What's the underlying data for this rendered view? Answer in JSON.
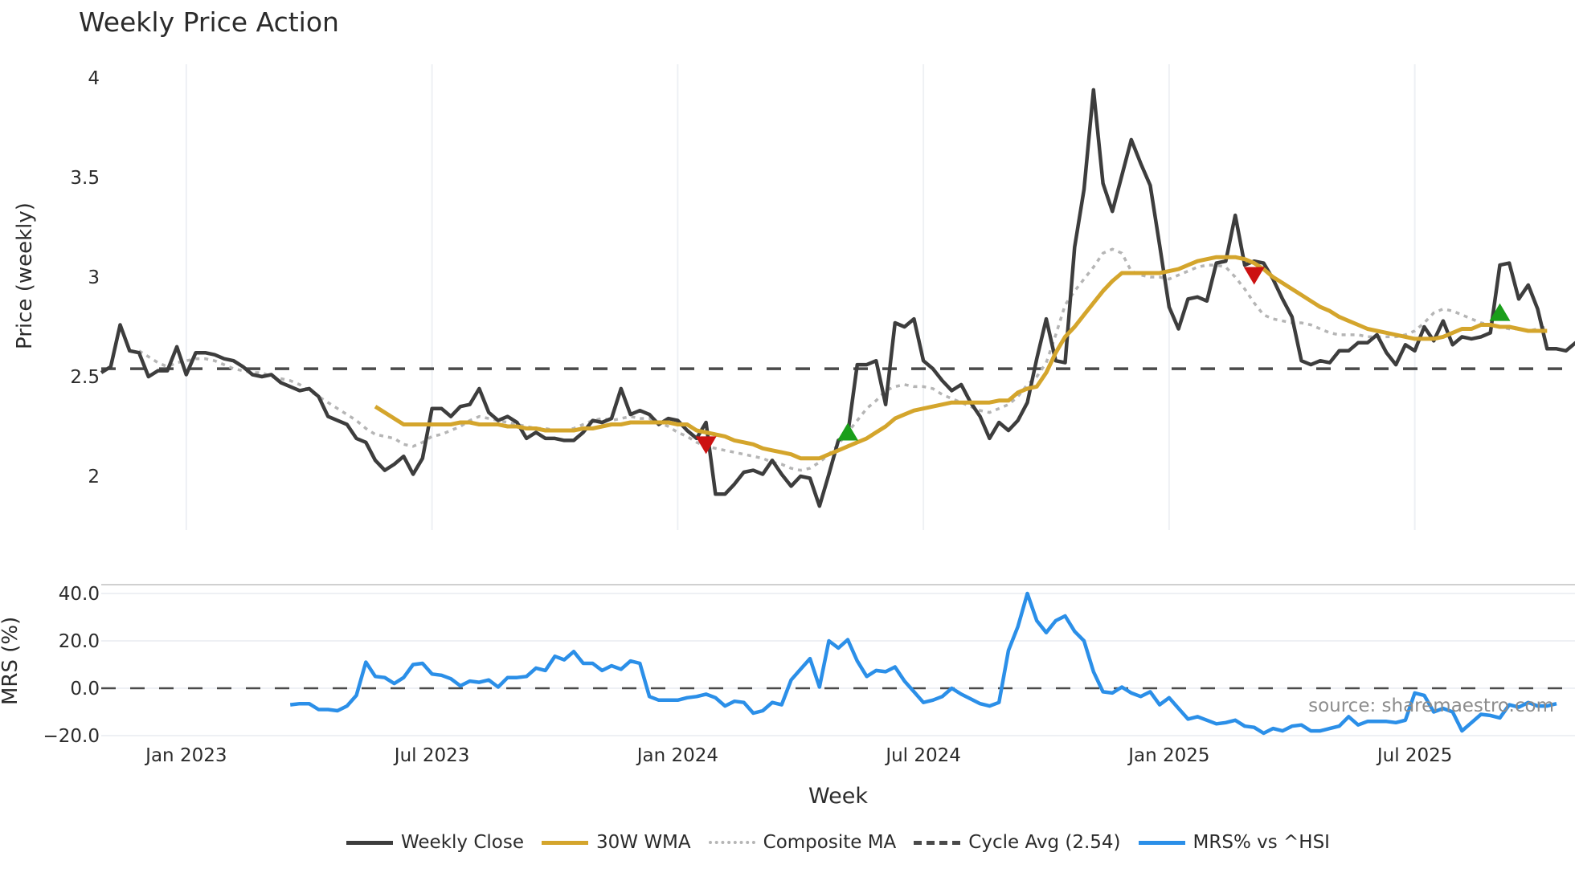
{
  "header": {
    "title": "Weekly Price Action"
  },
  "axes": {
    "xlabel": "Week",
    "ylabel_main": "Price (weekly)",
    "ylabel_mrs": "MRS (%)",
    "main_ticks": [
      {
        "label": "4",
        "value": 4
      },
      {
        "label": "3.5",
        "value": 3.5
      },
      {
        "label": "3",
        "value": 3
      },
      {
        "label": "2.5",
        "value": 2.5
      },
      {
        "label": "2",
        "value": 2
      }
    ],
    "mrs_ticks": [
      {
        "label": "40.0",
        "value": 40
      },
      {
        "label": "20.0",
        "value": 20
      },
      {
        "label": "0.0",
        "value": 0
      },
      {
        "label": "−20.0",
        "value": -20
      }
    ],
    "date_ticks": [
      {
        "label": "Jan 2023",
        "week": 9
      },
      {
        "label": "Jul 2023",
        "week": 35
      },
      {
        "label": "Jan 2024",
        "week": 61
      },
      {
        "label": "Jul 2024",
        "week": 87
      },
      {
        "label": "Jan 2025",
        "week": 113
      },
      {
        "label": "Jul 2025",
        "week": 139
      }
    ]
  },
  "legend": {
    "items": [
      {
        "label": "Weekly Close",
        "color": "#3d3d3d",
        "style": "solid"
      },
      {
        "label": "30W WMA",
        "color": "#d4a52c",
        "style": "solid"
      },
      {
        "label": "Composite MA",
        "color": "#b5b5b5",
        "style": "dotted"
      },
      {
        "label": "Cycle Avg (2.54)",
        "color": "#4a4a4a",
        "style": "dashed"
      },
      {
        "label": "MRS% vs ^HSI",
        "color": "#2b8fe8",
        "style": "solid"
      }
    ]
  },
  "annotation": {
    "source": "source: sharemaestro.com"
  },
  "colors": {
    "close": "#3d3d3d",
    "wma": "#d4a52c",
    "composite": "#b5b5b5",
    "cycle": "#4a4a4a",
    "mrs": "#2b8fe8",
    "buy": "#1a9e1a",
    "sell": "#cc1111",
    "grid": "#eef0f4"
  },
  "chart_data": [
    {
      "type": "line",
      "title": "Weekly Price Action",
      "xlabel": "Week",
      "ylabel": "Price (weekly)",
      "ylim": [
        1.72,
        4.08
      ],
      "x_ticks": [
        "Jan 2023",
        "Jul 2023",
        "Jan 2024",
        "Jul 2024",
        "Jan 2025",
        "Jul 2025"
      ],
      "grid": true,
      "legend_position": "bottom",
      "cycle_avg": 2.54,
      "series": [
        {
          "name": "Weekly Close",
          "start_week": 0,
          "values": [
            2.52,
            2.55,
            2.76,
            2.63,
            2.62,
            2.5,
            2.53,
            2.53,
            2.65,
            2.51,
            2.62,
            2.62,
            2.61,
            2.59,
            2.58,
            2.55,
            2.51,
            2.5,
            2.51,
            2.47,
            2.45,
            2.43,
            2.44,
            2.4,
            2.3,
            2.28,
            2.26,
            2.19,
            2.17,
            2.08,
            2.03,
            2.06,
            2.1,
            2.01,
            2.09,
            2.34,
            2.34,
            2.3,
            2.35,
            2.36,
            2.44,
            2.32,
            2.28,
            2.3,
            2.27,
            2.19,
            2.22,
            2.19,
            2.19,
            2.18,
            2.18,
            2.22,
            2.28,
            2.27,
            2.29,
            2.44,
            2.31,
            2.33,
            2.31,
            2.26,
            2.29,
            2.28,
            2.23,
            2.19,
            2.27,
            1.91,
            1.91,
            1.96,
            2.02,
            2.03,
            2.01,
            2.08,
            2.01,
            1.95,
            2.0,
            1.99,
            1.85,
            2.01,
            2.18,
            2.21,
            2.56,
            2.56,
            2.58,
            2.36,
            2.77,
            2.75,
            2.79,
            2.58,
            2.54,
            2.48,
            2.43,
            2.46,
            2.37,
            2.3,
            2.19,
            2.27,
            2.23,
            2.28,
            2.37,
            2.59,
            2.79,
            2.58,
            2.57,
            3.15,
            3.44,
            3.94,
            3.47,
            3.33,
            3.51,
            3.69,
            3.57,
            3.46,
            3.16,
            2.85,
            2.74,
            2.89,
            2.9,
            2.88,
            3.07,
            3.08,
            3.31,
            3.06,
            3.08,
            3.07,
            2.99,
            2.89,
            2.8,
            2.58,
            2.56,
            2.58,
            2.57,
            2.63,
            2.63,
            2.67,
            2.67,
            2.71,
            2.62,
            2.56,
            2.66,
            2.63,
            2.75,
            2.68,
            2.78,
            2.66,
            2.7,
            2.69,
            2.7,
            2.72,
            3.06,
            3.07,
            2.89,
            2.96,
            2.84,
            2.64,
            2.64,
            2.63,
            2.67,
            2.63,
            2.76,
            2.78
          ]
        },
        {
          "name": "30W WMA",
          "start_week": 29,
          "values": [
            2.35,
            2.32,
            2.29,
            2.26,
            2.26,
            2.26,
            2.26,
            2.26,
            2.26,
            2.27,
            2.27,
            2.26,
            2.26,
            2.26,
            2.25,
            2.25,
            2.24,
            2.24,
            2.23,
            2.23,
            2.23,
            2.23,
            2.24,
            2.24,
            2.25,
            2.26,
            2.26,
            2.27,
            2.27,
            2.27,
            2.27,
            2.27,
            2.26,
            2.26,
            2.23,
            2.22,
            2.21,
            2.2,
            2.18,
            2.17,
            2.16,
            2.14,
            2.13,
            2.12,
            2.11,
            2.09,
            2.09,
            2.09,
            2.11,
            2.13,
            2.15,
            2.17,
            2.19,
            2.22,
            2.25,
            2.29,
            2.31,
            2.33,
            2.34,
            2.35,
            2.36,
            2.37,
            2.37,
            2.37,
            2.37,
            2.37,
            2.38,
            2.38,
            2.42,
            2.44,
            2.45,
            2.52,
            2.62,
            2.7,
            2.75,
            2.81,
            2.87,
            2.93,
            2.98,
            3.02,
            3.02,
            3.02,
            3.02,
            3.02,
            3.03,
            3.04,
            3.06,
            3.08,
            3.09,
            3.1,
            3.1,
            3.1,
            3.09,
            3.07,
            3.04,
            3.0,
            2.97,
            2.94,
            2.91,
            2.88,
            2.85,
            2.83,
            2.8,
            2.78,
            2.76,
            2.74,
            2.73,
            2.72,
            2.71,
            2.7,
            2.69,
            2.69,
            2.69,
            2.7,
            2.72,
            2.74,
            2.74,
            2.76,
            2.76,
            2.75,
            2.75,
            2.74,
            2.73,
            2.73,
            2.73
          ]
        },
        {
          "name": "Composite MA",
          "start_week": 4,
          "values": [
            2.63,
            2.6,
            2.57,
            2.55,
            2.57,
            2.58,
            2.59,
            2.59,
            2.58,
            2.56,
            2.54,
            2.53,
            2.52,
            2.52,
            2.5,
            2.49,
            2.48,
            2.46,
            2.43,
            2.4,
            2.37,
            2.34,
            2.31,
            2.28,
            2.24,
            2.21,
            2.2,
            2.19,
            2.16,
            2.15,
            2.17,
            2.2,
            2.21,
            2.23,
            2.25,
            2.28,
            2.3,
            2.29,
            2.28,
            2.27,
            2.26,
            2.25,
            2.24,
            2.24,
            2.23,
            2.23,
            2.24,
            2.26,
            2.28,
            2.29,
            2.28,
            2.29,
            2.3,
            2.29,
            2.29,
            2.27,
            2.25,
            2.22,
            2.2,
            2.17,
            2.15,
            2.14,
            2.13,
            2.12,
            2.11,
            2.1,
            2.09,
            2.07,
            2.06,
            2.04,
            2.03,
            2.04,
            2.07,
            2.11,
            2.16,
            2.22,
            2.28,
            2.34,
            2.38,
            2.43,
            2.45,
            2.46,
            2.45,
            2.45,
            2.44,
            2.41,
            2.39,
            2.37,
            2.35,
            2.33,
            2.32,
            2.34,
            2.36,
            2.4,
            2.46,
            2.5,
            2.57,
            2.71,
            2.86,
            2.93,
            2.99,
            3.05,
            3.12,
            3.14,
            3.12,
            3.03,
            3.01,
            3.0,
            3.0,
            2.99,
            3.01,
            3.03,
            3.05,
            3.06,
            3.06,
            3.05,
            3.0,
            2.94,
            2.87,
            2.81,
            2.79,
            2.78,
            2.77,
            2.77,
            2.76,
            2.74,
            2.72,
            2.71,
            2.71,
            2.71,
            2.7,
            2.7,
            2.7,
            2.7,
            2.71,
            2.73,
            2.77,
            2.82,
            2.84,
            2.83,
            2.81,
            2.79,
            2.77,
            2.76,
            2.75,
            2.74,
            2.74,
            2.73,
            2.74,
            2.75
          ]
        }
      ],
      "markers": [
        {
          "type": "sell",
          "week": 64,
          "value": 2.16
        },
        {
          "type": "buy",
          "week": 79,
          "value": 2.22
        },
        {
          "type": "sell",
          "week": 122,
          "value": 3.01
        },
        {
          "type": "buy",
          "week": 148,
          "value": 2.82
        }
      ]
    },
    {
      "type": "line",
      "title": "MRS% vs ^HSI",
      "ylabel": "MRS (%)",
      "ylim": [
        -22,
        44
      ],
      "grid": true,
      "series": [
        {
          "name": "MRS% vs ^HSI",
          "start_week": 20,
          "values": [
            -7,
            -6.5,
            -6.5,
            -9,
            -9,
            -9.5,
            -7.5,
            -3,
            11,
            5,
            4.5,
            2,
            4.5,
            10,
            10.5,
            6,
            5.5,
            4,
            1,
            3,
            2.5,
            3.5,
            0.5,
            4.5,
            4.5,
            5,
            8.5,
            7.5,
            13.5,
            12,
            15.5,
            10.5,
            10.5,
            7.5,
            9.5,
            8,
            11.5,
            10.5,
            -3.5,
            -5,
            -5,
            -5,
            -4,
            -3.5,
            -2.5,
            -4,
            -7.5,
            -5.5,
            -6,
            -10.5,
            -9.5,
            -6,
            -7,
            3.5,
            8,
            12.5,
            0.5,
            20,
            17,
            20.5,
            11.5,
            5,
            7.5,
            7,
            9,
            3,
            -1.5,
            -6,
            -5,
            -3.5,
            0,
            -2.5,
            -4.5,
            -6.5,
            -7.5,
            -6,
            16,
            26,
            40,
            28.5,
            23.5,
            28.5,
            30.5,
            24,
            20,
            7,
            -1.5,
            -2,
            0.5,
            -2,
            -3.5,
            -1.5,
            -7,
            -4,
            -8.5,
            -13,
            -12,
            -13.5,
            -15,
            -14.5,
            -13.5,
            -16,
            -16.5,
            -19,
            -17,
            -18,
            -16,
            -15.5,
            -18,
            -18,
            -17,
            -16,
            -12,
            -15.5,
            -14,
            -14,
            -14,
            -14.5,
            -13.5,
            -2,
            -3,
            -10,
            -8.5,
            -10,
            -18,
            -14.5,
            -11,
            -11.5,
            -12.5,
            -7,
            -8,
            -6,
            -7.5,
            -7.5,
            -6.5
          ]
        }
      ],
      "reference_line": 0
    }
  ]
}
